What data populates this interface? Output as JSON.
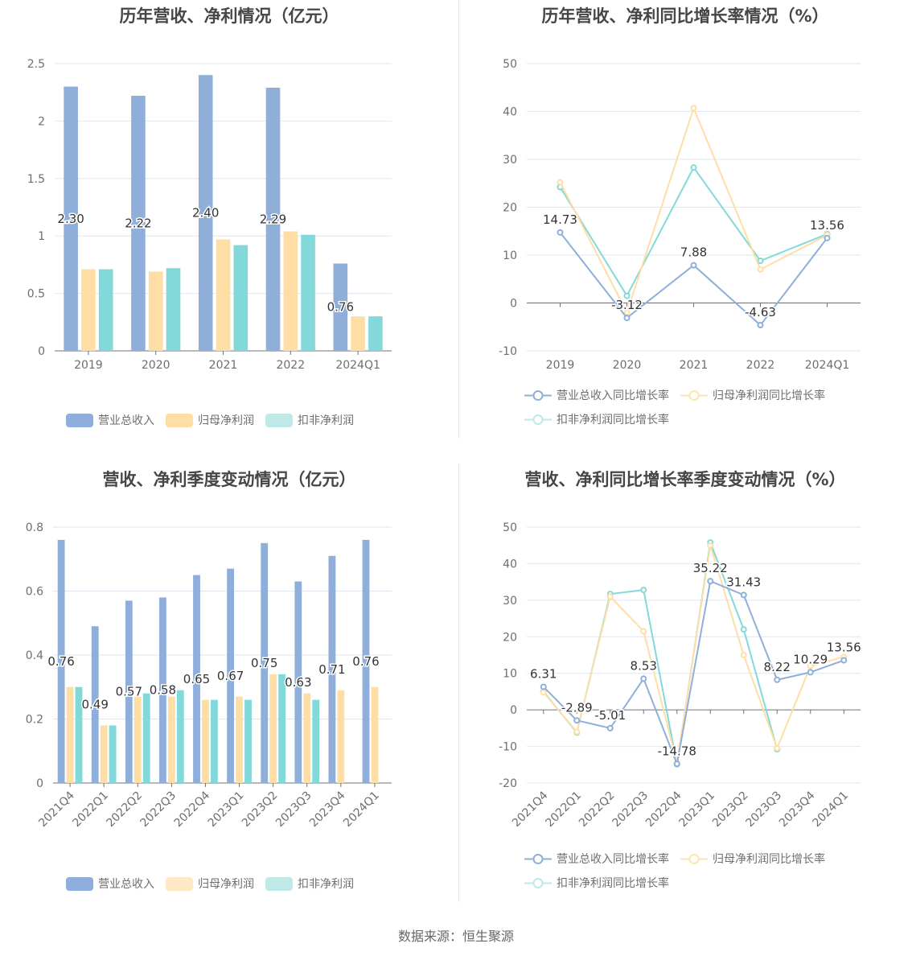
{
  "colors": {
    "revenue": "#8fafda",
    "net": "#ffdea6",
    "deducted": "#83d9d9",
    "axis": "#6e7079",
    "grid": "#e0e6f1",
    "label": "#6e6e6e"
  },
  "charts": {
    "annual_bar": {
      "title": "历年营收、净利情况（亿元）",
      "legend": [
        "营业总收入",
        "归母净利润",
        "扣非净利润"
      ]
    },
    "annual_line": {
      "title": "历年营收、净利同比增长率情况（%）",
      "legend": [
        "营业总收入同比增长率",
        "归母净利润同比增长率",
        "扣非净利润同比增长率"
      ]
    },
    "quarter_bar": {
      "title": "营收、净利季度变动情况（亿元）",
      "legend": [
        "营业总收入",
        "归母净利润",
        "扣非净利润"
      ]
    },
    "quarter_line": {
      "title": "营收、净利同比增长率季度变动情况（%）",
      "legend": [
        "营业总收入同比增长率",
        "归母净利润同比增长率",
        "扣非净利润同比增长率"
      ]
    }
  },
  "footer": "数据来源：恒生聚源",
  "chart_data": [
    {
      "type": "bar",
      "title": "历年营收、净利情况（亿元）",
      "categories": [
        "2019",
        "2020",
        "2021",
        "2022",
        "2024Q1"
      ],
      "ylim": [
        0,
        2.5
      ],
      "yticks": [
        0,
        0.5,
        1,
        1.5,
        2,
        2.5
      ],
      "series": [
        {
          "name": "营业总收入",
          "values": [
            2.3,
            2.22,
            2.4,
            2.29,
            0.76
          ],
          "labels": [
            "2.30",
            "2.22",
            "2.40",
            "2.29",
            "0.76"
          ]
        },
        {
          "name": "归母净利润",
          "values": [
            0.71,
            0.69,
            0.97,
            1.04,
            0.3
          ]
        },
        {
          "name": "扣非净利润",
          "values": [
            0.71,
            0.72,
            0.92,
            1.01,
            0.3
          ]
        }
      ],
      "legend_position": "bottom"
    },
    {
      "type": "line",
      "title": "历年营收、净利同比增长率情况（%）",
      "categories": [
        "2019",
        "2020",
        "2021",
        "2022",
        "2024Q1"
      ],
      "ylim": [
        -10,
        50
      ],
      "yticks": [
        -10,
        0,
        10,
        20,
        30,
        40,
        50
      ],
      "series": [
        {
          "name": "营业总收入同比增长率",
          "values": [
            14.73,
            -3.12,
            7.88,
            -4.63,
            13.56
          ],
          "labels": [
            "14.73",
            "-3.12",
            "7.88",
            "-4.63",
            "13.56"
          ]
        },
        {
          "name": "归母净利润同比增长率",
          "values": [
            25.2,
            -2.0,
            40.7,
            7.0,
            14.2
          ]
        },
        {
          "name": "扣非净利润同比增长率",
          "values": [
            24.2,
            1.5,
            28.3,
            8.8,
            14.4
          ]
        }
      ],
      "legend_position": "bottom"
    },
    {
      "type": "bar",
      "title": "营收、净利季度变动情况（亿元）",
      "categories": [
        "2021Q4",
        "2022Q1",
        "2022Q2",
        "2022Q3",
        "2022Q4",
        "2023Q1",
        "2023Q2",
        "2023Q3",
        "2023Q4",
        "2024Q1"
      ],
      "ylim": [
        0,
        0.8
      ],
      "yticks": [
        0,
        0.2,
        0.4,
        0.6,
        0.8
      ],
      "series": [
        {
          "name": "营业总收入",
          "values": [
            0.76,
            0.49,
            0.57,
            0.58,
            0.65,
            0.67,
            0.75,
            0.63,
            0.71,
            0.76
          ],
          "labels": [
            "0.76",
            "0.49",
            "0.57",
            "0.58",
            "0.65",
            "0.67",
            "0.75",
            "0.63",
            "0.71",
            "0.76"
          ]
        },
        {
          "name": "归母净利润",
          "values": [
            0.3,
            0.18,
            0.27,
            0.27,
            0.26,
            0.27,
            0.34,
            0.28,
            0.29,
            0.3
          ]
        },
        {
          "name": "扣非净利润",
          "values": [
            0.3,
            0.18,
            0.28,
            0.29,
            0.26,
            0.26,
            0.34,
            0.26,
            null,
            null
          ]
        }
      ],
      "legend_position": "bottom"
    },
    {
      "type": "line",
      "title": "营收、净利同比增长率季度变动情况（%）",
      "categories": [
        "2021Q4",
        "2022Q1",
        "2022Q2",
        "2022Q3",
        "2022Q4",
        "2023Q1",
        "2023Q2",
        "2023Q3",
        "2023Q4",
        "2024Q1"
      ],
      "ylim": [
        -20,
        50
      ],
      "yticks": [
        -20,
        -10,
        0,
        10,
        20,
        30,
        40,
        50
      ],
      "series": [
        {
          "name": "营业总收入同比增长率",
          "values": [
            6.31,
            -2.89,
            -5.01,
            8.53,
            -14.78,
            35.22,
            31.43,
            8.22,
            10.29,
            13.56
          ],
          "labels": [
            "6.31",
            "-2.89",
            "-5.01",
            "8.53",
            "-14.78",
            "35.22",
            "31.43",
            "8.22",
            "10.29",
            "13.56"
          ]
        },
        {
          "name": "归母净利润同比增长率",
          "values": [
            4.8,
            -6.0,
            31.0,
            21.5,
            -14.5,
            45.0,
            15.0,
            -10.5,
            12.0,
            14.5
          ]
        },
        {
          "name": "扣非净利润同比增长率",
          "values": [
            5.0,
            -6.2,
            31.7,
            32.8,
            -14.9,
            45.8,
            22.0,
            -10.8,
            null,
            null
          ]
        }
      ],
      "legend_position": "bottom"
    }
  ]
}
